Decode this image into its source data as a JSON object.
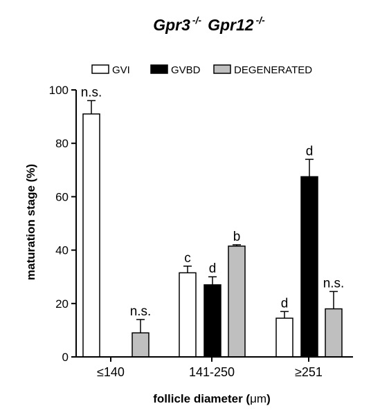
{
  "chart_data": {
    "type": "bar",
    "title": {
      "part1": "Gpr3",
      "sup1": "-/-",
      "part2": "Gpr12",
      "sup2": "-/-"
    },
    "xlabel_prefix": "follicle diameter (",
    "xlabel_unit": "μm",
    "xlabel_suffix": ")",
    "ylabel": "maturation stage (%)",
    "ylim": [
      0,
      100
    ],
    "yticks": [
      "0",
      "20",
      "40",
      "60",
      "80",
      "100"
    ],
    "categories": [
      "≤140",
      "141-250",
      "≥251"
    ],
    "legend_position": "top",
    "series": [
      {
        "name": "GVI",
        "color": "#ffffff",
        "values": [
          91,
          31.5,
          14.5
        ],
        "errors": [
          5,
          2.5,
          2.5
        ],
        "annotations": [
          "n.s.",
          "c",
          "d"
        ]
      },
      {
        "name": "GVBD",
        "color": "#000000",
        "values": [
          0,
          27,
          67.5
        ],
        "errors": [
          0,
          3,
          6.5
        ],
        "annotations": [
          "",
          "d",
          "d"
        ]
      },
      {
        "name": "DEGENERATED",
        "color": "#bfbfbf",
        "values": [
          9,
          41.5,
          18
        ],
        "errors": [
          5,
          0.5,
          6.5
        ],
        "annotations": [
          "n.s.",
          "b",
          "n.s."
        ]
      }
    ]
  }
}
